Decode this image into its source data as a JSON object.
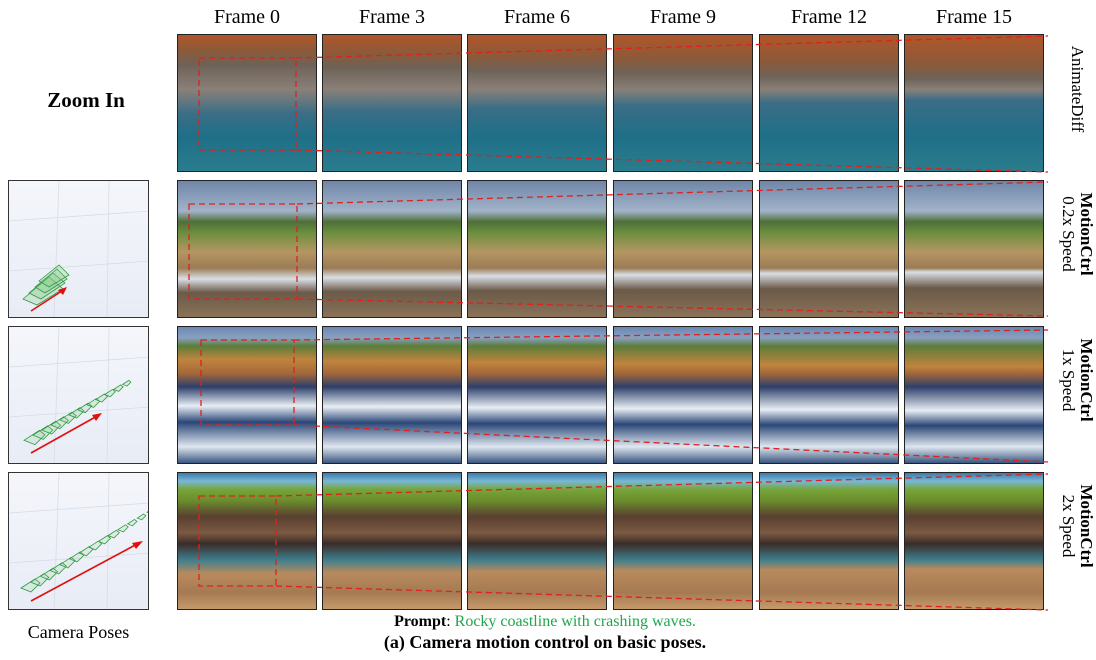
{
  "frames": [
    "Frame 0",
    "Frame 3",
    "Frame 6",
    "Frame 9",
    "Frame 12",
    "Frame 15"
  ],
  "zoom_title": "Zoom In",
  "rows": [
    {
      "method": "AnimateDiff",
      "speed": "",
      "scene": "rocky-beach"
    },
    {
      "method": "MotionCtrl",
      "speed": "0.2x Speed",
      "scene": "green-headland"
    },
    {
      "method": "MotionCtrl",
      "speed": "1x Speed",
      "scene": "golden-cliff-bay"
    },
    {
      "method": "MotionCtrl",
      "speed": "2x Speed",
      "scene": "layered-cliffs"
    }
  ],
  "camera_poses_label": "Camera Poses",
  "prompt_key": "Prompt",
  "prompt_text": "Rocky coastline with crashing waves.",
  "caption": "(a) Camera motion control on basic poses.",
  "colors": {
    "zoom_box": "#e02020",
    "prompt_text": "#1ea64b",
    "pose_arrow": "#e01010",
    "camera_frustum": "#2f9a3f"
  }
}
